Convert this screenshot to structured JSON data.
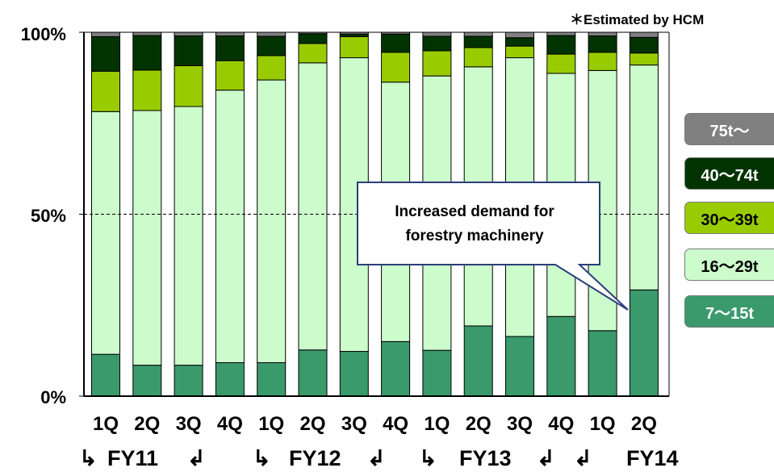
{
  "note": "＊Estimated by HCM",
  "callout": {
    "line1": "Increased demand for",
    "line2": "forestry machinery"
  },
  "colors": {
    "7-15t": "#3a9a6c",
    "16-29t": "#ccfccc",
    "30-39t": "#99cc00",
    "40-74t": "#003300",
    "75t-": "#808080"
  },
  "fy_arrows": {
    "right": "↳",
    "left": "↲"
  },
  "chart_data": {
    "type": "bar",
    "stacked": true,
    "percent": true,
    "categories": [
      "1Q",
      "2Q",
      "3Q",
      "4Q",
      "1Q",
      "2Q",
      "3Q",
      "4Q",
      "1Q",
      "2Q",
      "3Q",
      "4Q",
      "1Q",
      "2Q"
    ],
    "fiscal_years": [
      "FY11",
      "FY12",
      "FY13",
      "FY14"
    ],
    "y_ticks": [
      "0%",
      "50%",
      "100%"
    ],
    "ylim": [
      0,
      100
    ],
    "grid": "dashed at 50%",
    "legend_position": "right",
    "series": [
      {
        "name": "7～15t",
        "color_key": "7-15t",
        "values": [
          11.5,
          8.5,
          8.5,
          9.2,
          9.2,
          12.7,
          12.3,
          15.0,
          12.6,
          19.3,
          16.4,
          21.9,
          18.0,
          29.2
        ]
      },
      {
        "name": "16～29t",
        "color_key": "16-29t",
        "values": [
          66.7,
          70.0,
          71.1,
          74.9,
          77.7,
          78.9,
          80.7,
          71.3,
          75.4,
          71.2,
          76.6,
          66.8,
          71.5,
          61.8
        ]
      },
      {
        "name": "30～39t",
        "color_key": "30-39t",
        "values": [
          11.1,
          11.1,
          11.2,
          8.1,
          6.7,
          5.3,
          5.8,
          8.2,
          6.9,
          5.3,
          3.2,
          5.3,
          5.0,
          3.3
        ]
      },
      {
        "name": "40～74t",
        "color_key": "40-74t",
        "values": [
          9.5,
          9.5,
          8.2,
          6.8,
          5.3,
          2.7,
          0.7,
          5.0,
          4.0,
          3.1,
          2.3,
          5.1,
          4.5,
          4.3
        ]
      },
      {
        "name": "75t～",
        "color_key": "75t-",
        "values": [
          1.2,
          0.9,
          1.0,
          1.0,
          1.1,
          0.4,
          0.5,
          0.5,
          1.1,
          1.1,
          1.5,
          0.9,
          1.0,
          1.4
        ]
      }
    ]
  },
  "legend": [
    {
      "label": "75t～",
      "bg": "#808080",
      "fg": "#ffffff"
    },
    {
      "label": "40～74t",
      "bg": "#003300",
      "fg": "#ffffff"
    },
    {
      "label": "30～39t",
      "bg": "#99cc00",
      "fg": "#000000"
    },
    {
      "label": "16～29t",
      "bg": "#ccfccc",
      "fg": "#000000"
    },
    {
      "label": "7～15t",
      "bg": "#3a9a6c",
      "fg": "#ffffff"
    }
  ]
}
